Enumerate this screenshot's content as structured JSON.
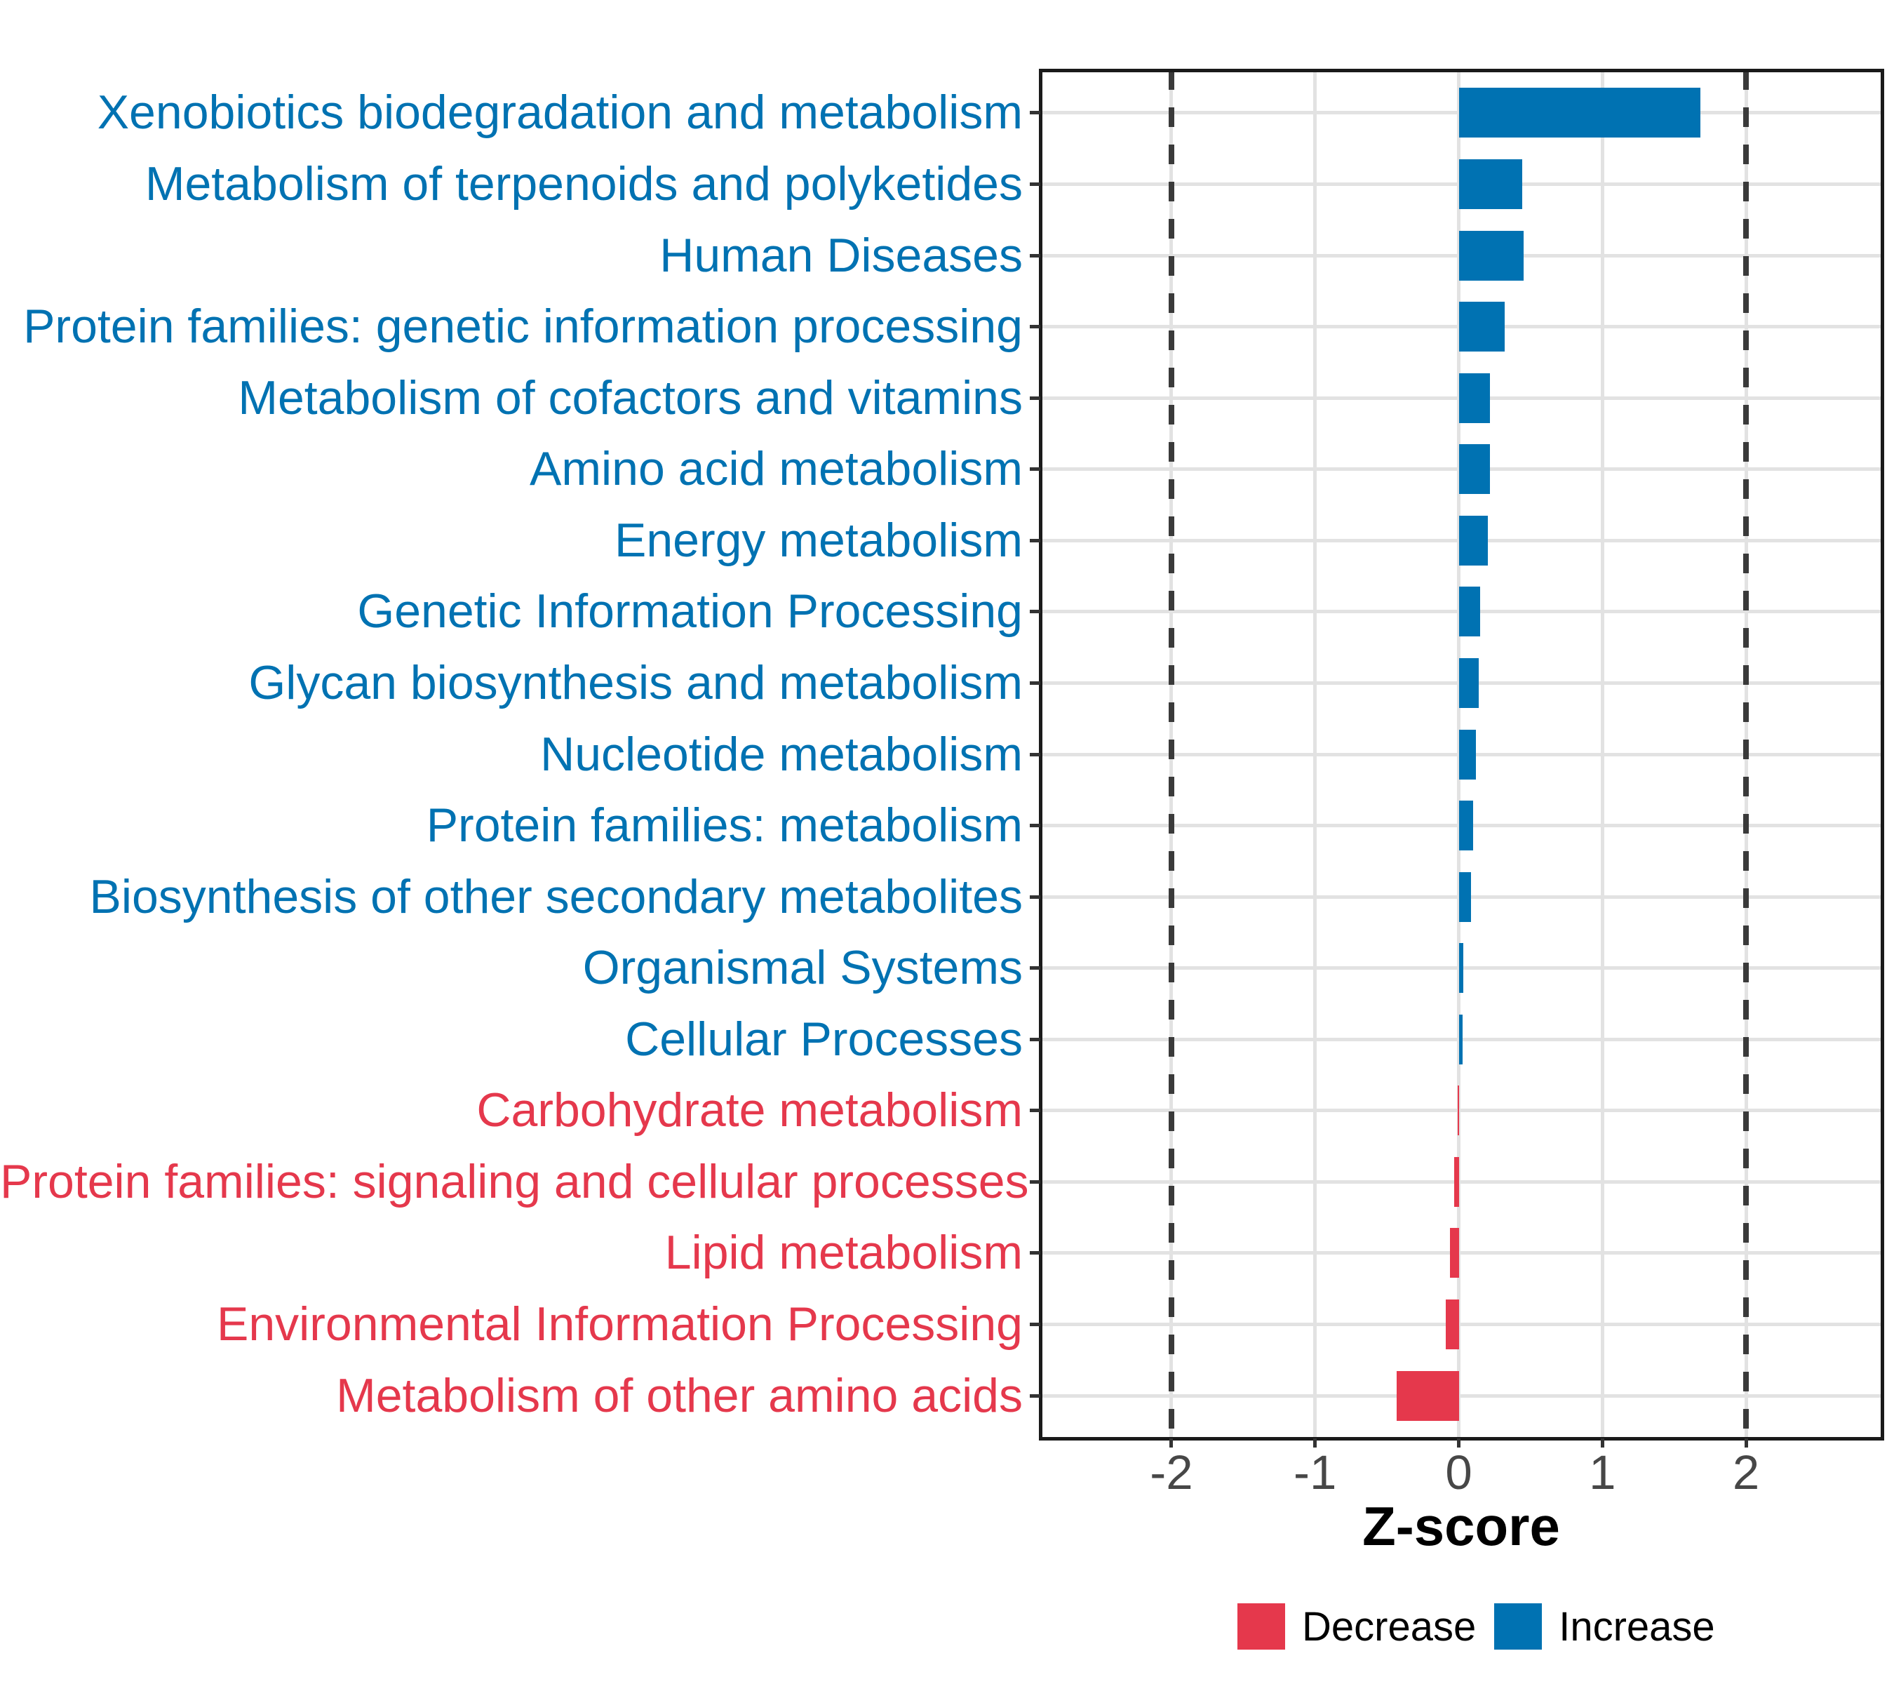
{
  "chart_data": {
    "type": "bar",
    "orientation": "horizontal",
    "xlabel": "Z-score",
    "x_range": [
      -2.913,
      2.947
    ],
    "x_ticks": [
      {
        "value": -2,
        "label": "-2"
      },
      {
        "value": -1,
        "label": "-1"
      },
      {
        "value": 0,
        "label": "0"
      },
      {
        "value": 1,
        "label": "1"
      },
      {
        "value": 2,
        "label": "2"
      }
    ],
    "dashed_lines_x": [
      -2,
      2
    ],
    "categories": [
      {
        "label": "Xenobiotics biodegradation and metabolism",
        "value": 1.68,
        "direction": "Increase"
      },
      {
        "label": "Metabolism of terpenoids and polyketides",
        "value": 0.44,
        "direction": "Increase"
      },
      {
        "label": "Human Diseases",
        "value": 0.45,
        "direction": "Increase"
      },
      {
        "label": "Protein families: genetic information processing",
        "value": 0.32,
        "direction": "Increase"
      },
      {
        "label": "Metabolism of cofactors and vitamins",
        "value": 0.215,
        "direction": "Increase"
      },
      {
        "label": "Amino acid metabolism",
        "value": 0.215,
        "direction": "Increase"
      },
      {
        "label": "Energy metabolism",
        "value": 0.205,
        "direction": "Increase"
      },
      {
        "label": "Genetic Information Processing",
        "value": 0.15,
        "direction": "Increase"
      },
      {
        "label": "Glycan biosynthesis and metabolism",
        "value": 0.14,
        "direction": "Increase"
      },
      {
        "label": "Nucleotide metabolism",
        "value": 0.12,
        "direction": "Increase"
      },
      {
        "label": "Protein families: metabolism",
        "value": 0.1,
        "direction": "Increase"
      },
      {
        "label": "Biosynthesis of other secondary metabolites",
        "value": 0.085,
        "direction": "Increase"
      },
      {
        "label": "Organismal Systems",
        "value": 0.033,
        "direction": "Increase"
      },
      {
        "label": "Cellular Processes",
        "value": 0.028,
        "direction": "Increase"
      },
      {
        "label": "Carbohydrate metabolism",
        "value": -0.008,
        "direction": "Decrease"
      },
      {
        "label": "Protein families: signaling and cellular processes",
        "value": -0.03,
        "direction": "Decrease"
      },
      {
        "label": "Lipid metabolism",
        "value": -0.06,
        "direction": "Decrease"
      },
      {
        "label": "Environmental Information Processing",
        "value": -0.09,
        "direction": "Decrease"
      },
      {
        "label": "Metabolism of other amino acids",
        "value": -0.43,
        "direction": "Decrease"
      }
    ],
    "colors": {
      "increase": "#0072B2",
      "decrease": "#E5384C",
      "grid": "#E2E2E2",
      "dash": "#3A3A3A",
      "axis_text": "#474747",
      "border": "#1A1A1A",
      "tick": "#333333"
    },
    "legend": [
      {
        "label": "Decrease",
        "color_key": "decrease"
      },
      {
        "label": "Increase",
        "color_key": "increase"
      }
    ]
  }
}
